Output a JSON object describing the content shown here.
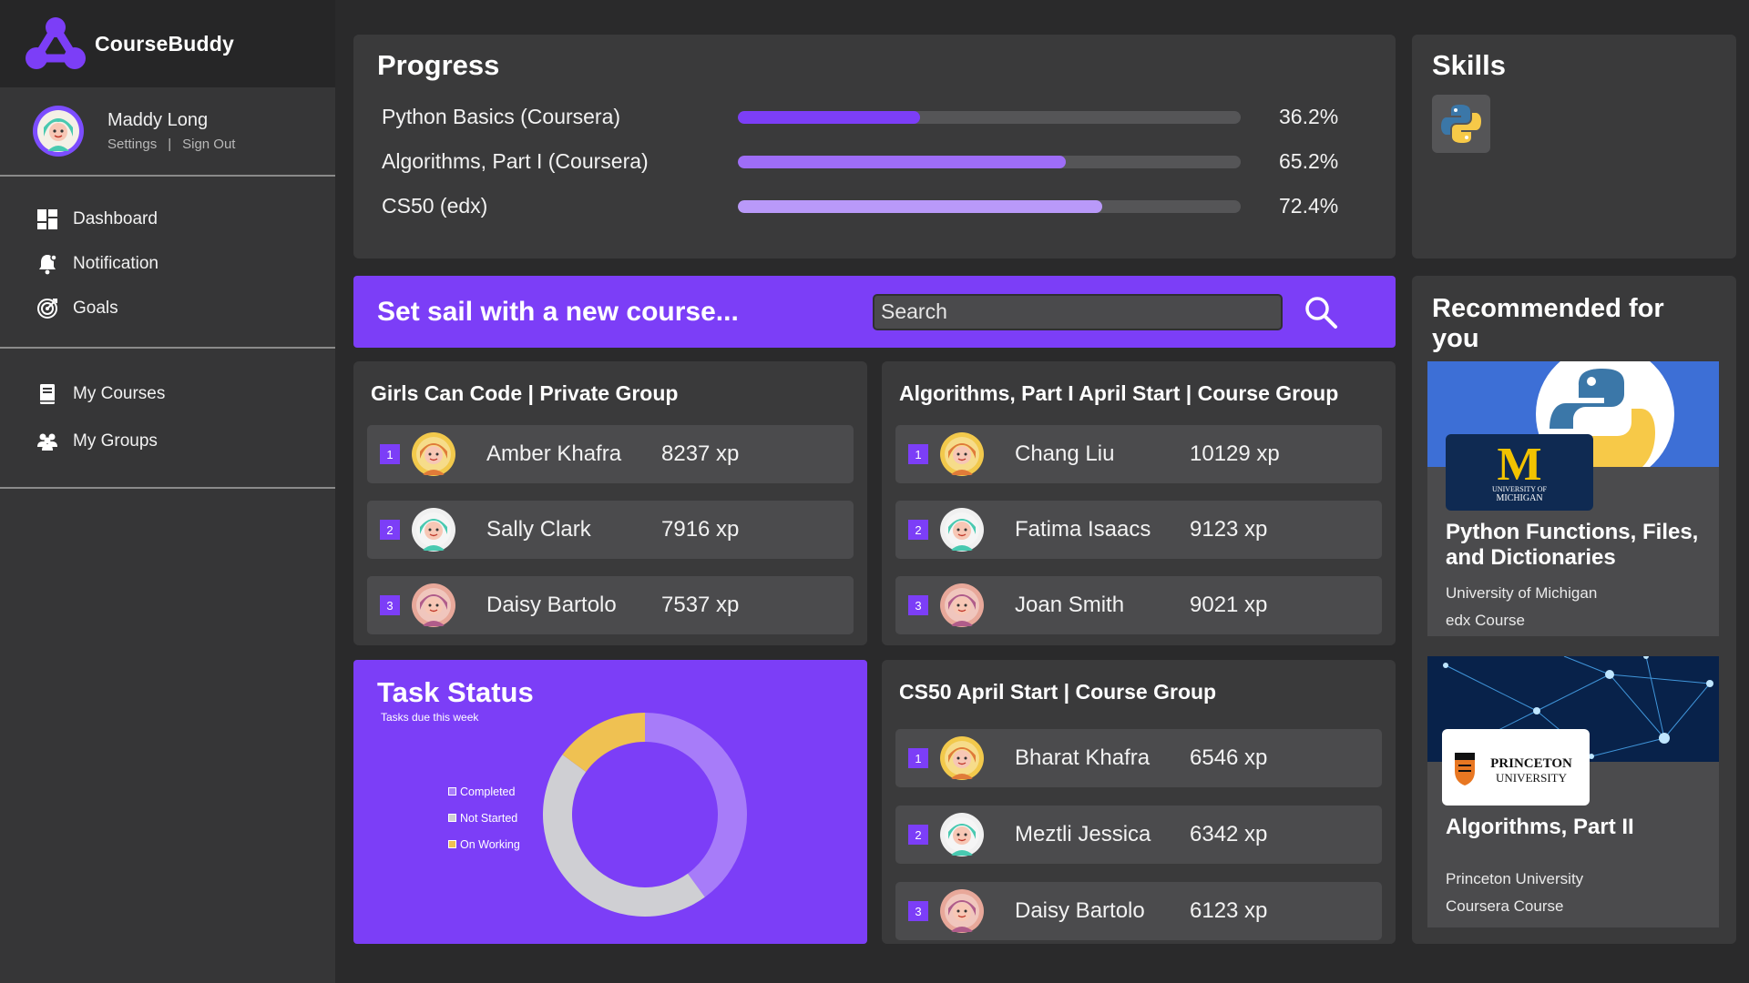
{
  "app": {
    "name": "CourseBuddy",
    "accent_color": "#7c3ef7"
  },
  "user": {
    "name": "Maddy Long",
    "settings_label": "Settings",
    "separator": "|",
    "signout_label": "Sign Out"
  },
  "nav": {
    "primary": [
      {
        "label": "Dashboard",
        "icon": "dashboard-icon"
      },
      {
        "label": "Notification",
        "icon": "bell-icon"
      },
      {
        "label": "Goals",
        "icon": "target-icon"
      }
    ],
    "secondary": [
      {
        "label": "My Courses",
        "icon": "book-icon"
      },
      {
        "label": "My Groups",
        "icon": "group-icon"
      }
    ]
  },
  "progress": {
    "title": "Progress",
    "items": [
      {
        "label": "Python Basics (Coursera)",
        "value": "36.2%",
        "fraction": 0.362,
        "color": "#7c3ef7"
      },
      {
        "label": "Algorithms, Part I (Coursera)",
        "value": "65.2%",
        "fraction": 0.652,
        "color": "#9e6df7"
      },
      {
        "label": "CS50 (edx)",
        "value": "72.4%",
        "fraction": 0.724,
        "color": "#b999f9"
      }
    ]
  },
  "skills": {
    "title": "Skills",
    "items": [
      {
        "icon": "python-icon"
      }
    ]
  },
  "banner": {
    "title": "Set sail with a new course...",
    "search_placeholder": "Search"
  },
  "boards": [
    {
      "title": "Girls Can Code | Private Group",
      "members": [
        {
          "rank": "1",
          "name": "Amber Khafra",
          "xp": "8237 xp",
          "avatar_bg": "#f2c94c"
        },
        {
          "rank": "2",
          "name": "Sally Clark",
          "xp": "7916 xp",
          "avatar_bg": "#f0f0f0"
        },
        {
          "rank": "3",
          "name": "Daisy Bartolo",
          "xp": "7537 xp",
          "avatar_bg": "#e8a89a"
        }
      ]
    },
    {
      "title": "Algorithms, Part I April Start | Course Group",
      "members": [
        {
          "rank": "1",
          "name": "Chang Liu",
          "xp": "10129 xp",
          "avatar_bg": "#f2c94c"
        },
        {
          "rank": "2",
          "name": "Fatima Isaacs",
          "xp": "9123 xp",
          "avatar_bg": "#f0f0f0"
        },
        {
          "rank": "3",
          "name": "Joan Smith",
          "xp": "9021 xp",
          "avatar_bg": "#e8a89a"
        }
      ]
    },
    {
      "title": "CS50 April Start | Course Group",
      "members": [
        {
          "rank": "1",
          "name": "Bharat Khafra",
          "xp": "6546 xp",
          "avatar_bg": "#f2c94c"
        },
        {
          "rank": "2",
          "name": "Meztli Jessica",
          "xp": "6342 xp",
          "avatar_bg": "#f0f0f0"
        },
        {
          "rank": "3",
          "name": "Daisy Bartolo",
          "xp": "6123 xp",
          "avatar_bg": "#e8a89a"
        }
      ]
    }
  ],
  "tasks": {
    "title": "Task Status",
    "subtitle": "Tasks due this week",
    "legend": [
      {
        "label": "Completed",
        "color": "#a77cf9"
      },
      {
        "label": "Not Started",
        "color": "#cfcfd3"
      },
      {
        "label": "On Working",
        "color": "#efc152"
      }
    ]
  },
  "chart_data": {
    "type": "pie",
    "title": "Task Status",
    "subtitle": "Tasks due this week",
    "labels": [
      "Completed",
      "Not Started",
      "On Working"
    ],
    "values": [
      40,
      45,
      15
    ],
    "colors": [
      "#a77cf9",
      "#cfcfd3",
      "#efc152"
    ],
    "legend_position": "left"
  },
  "recommended": {
    "title": "Recommended for you",
    "items": [
      {
        "name": "Python Functions, Files, and Dictionaries",
        "institution": "University of Michigan",
        "type": "edx Course",
        "logo_letter": "M",
        "logo_text_1": "UNIVERSITY OF",
        "logo_text_2": "MICHIGAN"
      },
      {
        "name": "Algorithms, Part II",
        "institution": "Princeton University",
        "type": "Coursera  Course",
        "logo_text_1": "PRINCETON",
        "logo_text_2": "UNIVERSITY"
      }
    ]
  }
}
